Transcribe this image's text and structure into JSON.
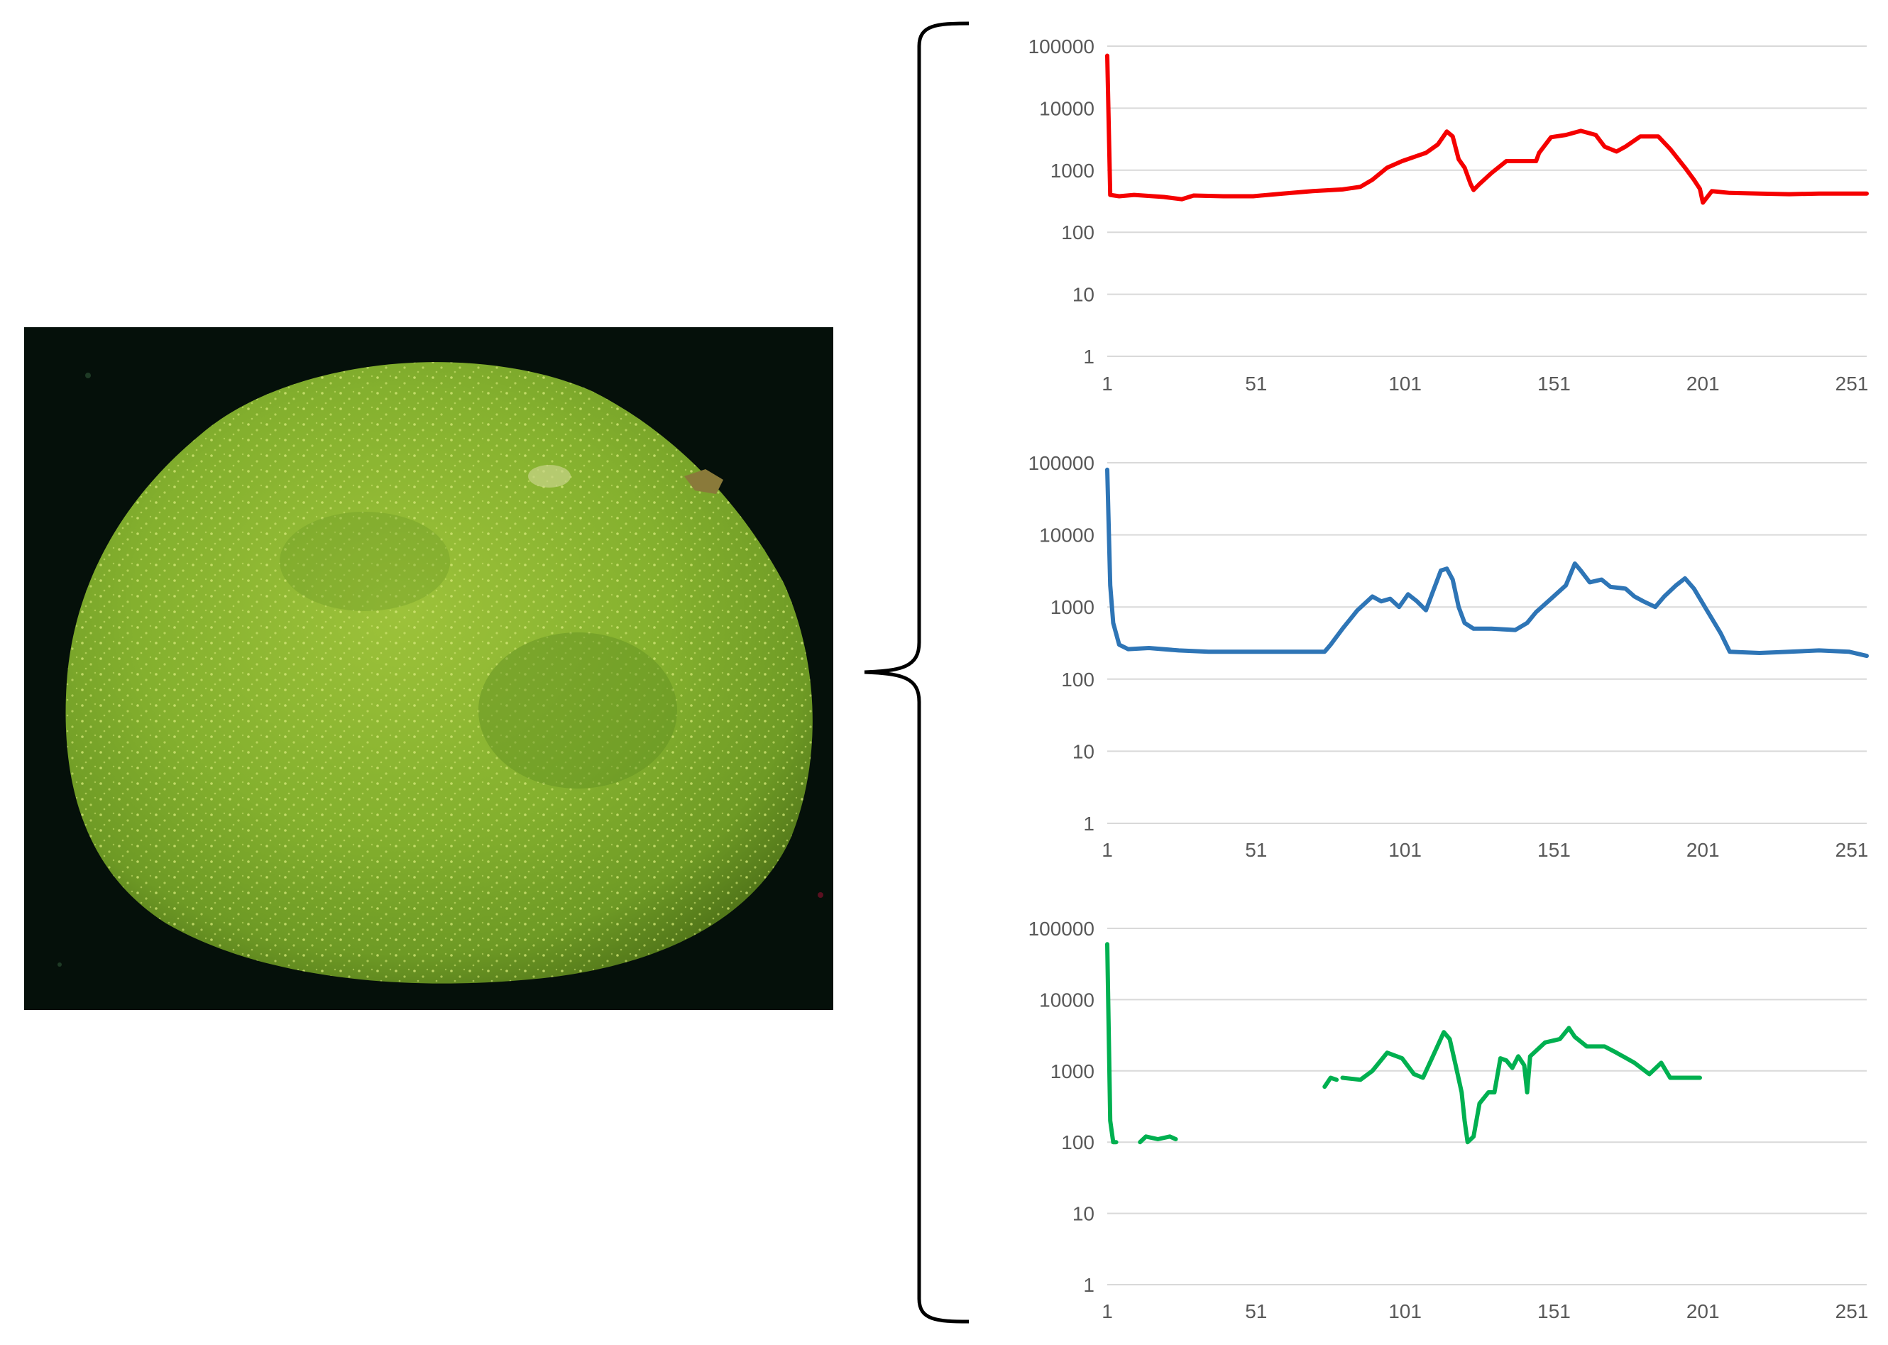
{
  "figure": {
    "photo": {
      "subject": "green mango fruit on black background"
    },
    "bracket": {
      "style": "curly brace"
    }
  },
  "colors": {
    "red": "#f50000",
    "blue": "#2e75b6",
    "green": "#00b050",
    "grid": "#d9d9d9",
    "tick_text": "#595959",
    "background": "#000000"
  },
  "chart_data": [
    {
      "type": "line",
      "title": "",
      "xlabel": "",
      "ylabel": "",
      "yscale": "log",
      "ylim": [
        1,
        100000
      ],
      "xlim": [
        1,
        256
      ],
      "xticks": [
        "1",
        "51",
        "101",
        "151",
        "201",
        "251"
      ],
      "yticks": [
        "1",
        "10",
        "100",
        "1000",
        "10000",
        "100000"
      ],
      "grid": true,
      "color": "#f50000",
      "series": [
        {
          "points": [
            [
              1,
              70000
            ],
            [
              2,
              400
            ],
            [
              5,
              380
            ],
            [
              10,
              400
            ],
            [
              20,
              370
            ],
            [
              26,
              340
            ],
            [
              30,
              390
            ],
            [
              40,
              380
            ],
            [
              50,
              380
            ],
            [
              60,
              420
            ],
            [
              70,
              460
            ],
            [
              80,
              490
            ],
            [
              86,
              540
            ],
            [
              90,
              700
            ],
            [
              95,
              1100
            ],
            [
              100,
              1400
            ],
            [
              105,
              1700
            ],
            [
              108,
              1900
            ],
            [
              112,
              2600
            ],
            [
              115,
              4200
            ],
            [
              117,
              3500
            ],
            [
              119,
              1500
            ],
            [
              121,
              1100
            ],
            [
              123,
              600
            ],
            [
              124,
              480
            ],
            [
              126,
              600
            ],
            [
              130,
              900
            ],
            [
              135,
              1400
            ],
            [
              140,
              1400
            ],
            [
              145,
              1400
            ],
            [
              146,
              1900
            ],
            [
              150,
              3400
            ],
            [
              155,
              3700
            ],
            [
              160,
              4300
            ],
            [
              165,
              3700
            ],
            [
              168,
              2400
            ],
            [
              172,
              2000
            ],
            [
              175,
              2400
            ],
            [
              180,
              3500
            ],
            [
              186,
              3500
            ],
            [
              190,
              2200
            ],
            [
              195,
              1100
            ],
            [
              198,
              700
            ],
            [
              200,
              500
            ],
            [
              201,
              300
            ],
            [
              204,
              460
            ],
            [
              210,
              430
            ],
            [
              220,
              420
            ],
            [
              230,
              410
            ],
            [
              240,
              420
            ],
            [
              256,
              420
            ]
          ]
        }
      ]
    },
    {
      "type": "line",
      "title": "",
      "xlabel": "",
      "ylabel": "",
      "yscale": "log",
      "ylim": [
        1,
        100000
      ],
      "xlim": [
        1,
        256
      ],
      "xticks": [
        "1",
        "51",
        "101",
        "151",
        "201",
        "251"
      ],
      "yticks": [
        "1",
        "10",
        "100",
        "1000",
        "10000",
        "100000"
      ],
      "grid": true,
      "color": "#2e75b6",
      "series": [
        {
          "points": [
            [
              1,
              80000
            ],
            [
              2,
              2000
            ],
            [
              3,
              600
            ],
            [
              5,
              300
            ],
            [
              8,
              260
            ],
            [
              15,
              270
            ],
            [
              25,
              250
            ],
            [
              35,
              240
            ],
            [
              45,
              240
            ],
            [
              55,
              240
            ],
            [
              65,
              240
            ],
            [
              74,
              240
            ],
            [
              76,
              300
            ],
            [
              80,
              500
            ],
            [
              85,
              900
            ],
            [
              90,
              1400
            ],
            [
              93,
              1200
            ],
            [
              96,
              1300
            ],
            [
              99,
              1000
            ],
            [
              102,
              1500
            ],
            [
              105,
              1200
            ],
            [
              108,
              900
            ],
            [
              110,
              1500
            ],
            [
              113,
              3200
            ],
            [
              115,
              3400
            ],
            [
              117,
              2400
            ],
            [
              119,
              1000
            ],
            [
              121,
              600
            ],
            [
              124,
              500
            ],
            [
              130,
              500
            ],
            [
              138,
              480
            ],
            [
              142,
              600
            ],
            [
              145,
              850
            ],
            [
              150,
              1300
            ],
            [
              155,
              2000
            ],
            [
              158,
              4000
            ],
            [
              160,
              3200
            ],
            [
              163,
              2200
            ],
            [
              167,
              2400
            ],
            [
              170,
              1900
            ],
            [
              175,
              1800
            ],
            [
              178,
              1400
            ],
            [
              181,
              1200
            ],
            [
              185,
              1000
            ],
            [
              188,
              1400
            ],
            [
              192,
              2000
            ],
            [
              195,
              2500
            ],
            [
              198,
              1800
            ],
            [
              202,
              950
            ],
            [
              207,
              430
            ],
            [
              210,
              240
            ],
            [
              220,
              230
            ],
            [
              230,
              240
            ],
            [
              240,
              250
            ],
            [
              250,
              240
            ],
            [
              256,
              210
            ]
          ]
        }
      ]
    },
    {
      "type": "line",
      "title": "",
      "xlabel": "",
      "ylabel": "",
      "yscale": "log",
      "ylim": [
        1,
        100000
      ],
      "xlim": [
        1,
        256
      ],
      "xticks": [
        "1",
        "51",
        "101",
        "151",
        "201",
        "251"
      ],
      "yticks": [
        "1",
        "10",
        "100",
        "1000",
        "10000",
        "100000"
      ],
      "grid": true,
      "color": "#00b050",
      "series": [
        {
          "points": [
            [
              1,
              60000
            ],
            [
              2,
              200
            ],
            [
              3,
              100
            ],
            [
              4,
              100
            ]
          ]
        },
        {
          "points": [
            [
              12,
              100
            ],
            [
              14,
              120
            ],
            [
              18,
              110
            ],
            [
              22,
              120
            ],
            [
              24,
              110
            ]
          ]
        },
        {
          "points": [
            [
              74,
              600
            ],
            [
              76,
              800
            ],
            [
              78,
              750
            ]
          ]
        },
        {
          "points": [
            [
              80,
              800
            ],
            [
              86,
              750
            ],
            [
              90,
              1000
            ],
            [
              95,
              1800
            ],
            [
              100,
              1500
            ],
            [
              104,
              900
            ],
            [
              107,
              800
            ],
            [
              110,
              1500
            ],
            [
              114,
              3500
            ],
            [
              116,
              2800
            ],
            [
              118,
              1200
            ],
            [
              120,
              500
            ],
            [
              121,
              200
            ],
            [
              122,
              100
            ],
            [
              124,
              120
            ],
            [
              126,
              350
            ],
            [
              129,
              500
            ],
            [
              131,
              500
            ],
            [
              133,
              1500
            ],
            [
              135,
              1400
            ],
            [
              137,
              1100
            ],
            [
              139,
              1600
            ],
            [
              141,
              1200
            ],
            [
              142,
              500
            ],
            [
              143,
              1600
            ],
            [
              148,
              2500
            ],
            [
              153,
              2800
            ],
            [
              156,
              4000
            ],
            [
              158,
              3000
            ],
            [
              162,
              2200
            ],
            [
              168,
              2200
            ],
            [
              172,
              1800
            ],
            [
              178,
              1300
            ],
            [
              183,
              900
            ],
            [
              187,
              1300
            ],
            [
              190,
              800
            ],
            [
              196,
              800
            ],
            [
              200,
              800
            ]
          ]
        }
      ]
    }
  ]
}
